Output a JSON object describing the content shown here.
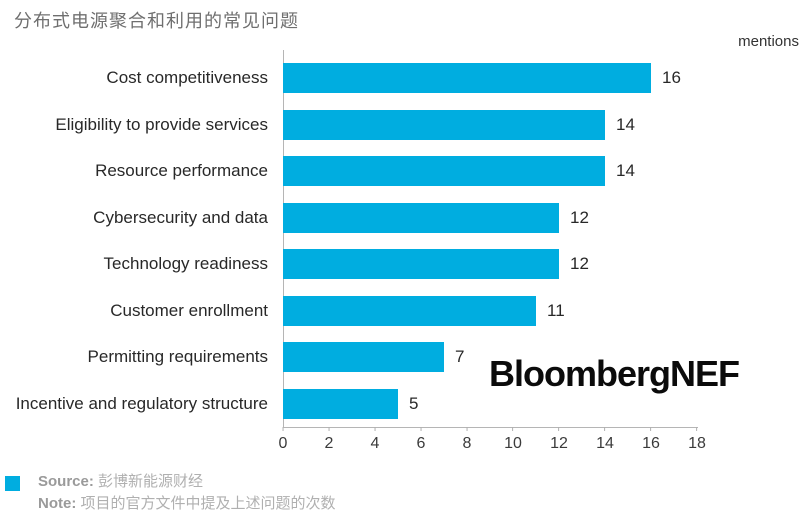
{
  "title": "分布式电源聚合和利用的常见问题",
  "unit_label": "mentions",
  "watermark": "BloombergNEF",
  "colors": {
    "bar": "#00ade0"
  },
  "chart_data": {
    "type": "bar",
    "orientation": "horizontal",
    "title": "分布式电源聚合和利用的常见问题",
    "xlabel": "mentions",
    "ylabel": "",
    "categories": [
      "Cost competitiveness",
      "Eligibility to provide services",
      "Resource performance",
      "Cybersecurity and data",
      "Technology readiness",
      "Customer enrollment",
      "Permitting requirements",
      "Incentive and regulatory structure"
    ],
    "values": [
      16,
      14,
      14,
      12,
      12,
      11,
      7,
      5
    ],
    "xlim": [
      0,
      18
    ],
    "xticks": [
      0,
      2,
      4,
      6,
      8,
      10,
      12,
      14,
      16,
      18
    ],
    "grid": false,
    "data_labels": true,
    "legend_position": "none"
  },
  "footer": {
    "source_label": "Source:",
    "source_text": "彭博新能源财经",
    "note_label": "Note:",
    "note_text": "项目的官方文件中提及上述问题的次数"
  }
}
